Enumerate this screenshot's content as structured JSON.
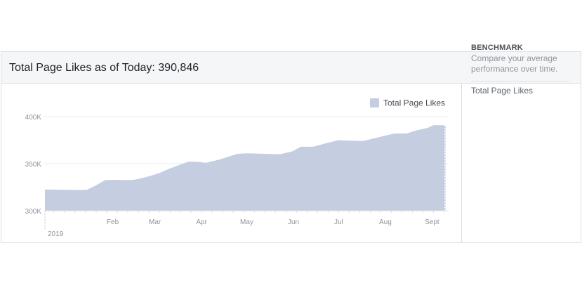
{
  "header": {
    "title": "Total Page Likes as of Today: 390,846"
  },
  "sidebar": {
    "benchmark_title": "BENCHMARK",
    "benchmark_desc": "Compare your average performance over time.",
    "benchmark_item": "Total Page Likes"
  },
  "chart_data": {
    "type": "area",
    "series": [
      {
        "name": "Total Page Likes",
        "color": "#c5cde0",
        "x": [
          "2019-01-01",
          "2019-01-12",
          "2019-01-24",
          "2019-01-29",
          "2019-02-04",
          "2019-02-10",
          "2019-02-16",
          "2019-02-22",
          "2019-03-01",
          "2019-03-06",
          "2019-03-12",
          "2019-03-18",
          "2019-03-25",
          "2019-04-01",
          "2019-04-06",
          "2019-04-12",
          "2019-04-18",
          "2019-04-26",
          "2019-05-03",
          "2019-05-09",
          "2019-05-16",
          "2019-05-25",
          "2019-06-06",
          "2019-06-14",
          "2019-06-20",
          "2019-06-28",
          "2019-07-06",
          "2019-07-15",
          "2019-07-22",
          "2019-07-31",
          "2019-08-08",
          "2019-08-14",
          "2019-08-21",
          "2019-08-29",
          "2019-09-05",
          "2019-09-12",
          "2019-09-16",
          "2019-09-24"
        ],
        "y": [
          322500,
          322300,
          322000,
          322300,
          327000,
          332500,
          332800,
          332500,
          332800,
          334500,
          337000,
          340000,
          345000,
          349000,
          352000,
          352000,
          351000,
          354000,
          357500,
          360500,
          361000,
          360500,
          360000,
          363000,
          368000,
          368000,
          371500,
          375000,
          374500,
          374000,
          377000,
          379500,
          382000,
          382000,
          385500,
          388000,
          391000,
          390846
        ]
      }
    ],
    "x_ticks": [
      "Feb",
      "Mar",
      "Apr",
      "May",
      "Jun",
      "Jul",
      "Aug",
      "Sept"
    ],
    "x_year_label": "2019",
    "y_ticks": [
      "300K",
      "350K",
      "400K"
    ],
    "ylim": [
      300000,
      400000
    ],
    "grid": true,
    "legend": "top-right",
    "legend_label": "Total Page Likes"
  }
}
